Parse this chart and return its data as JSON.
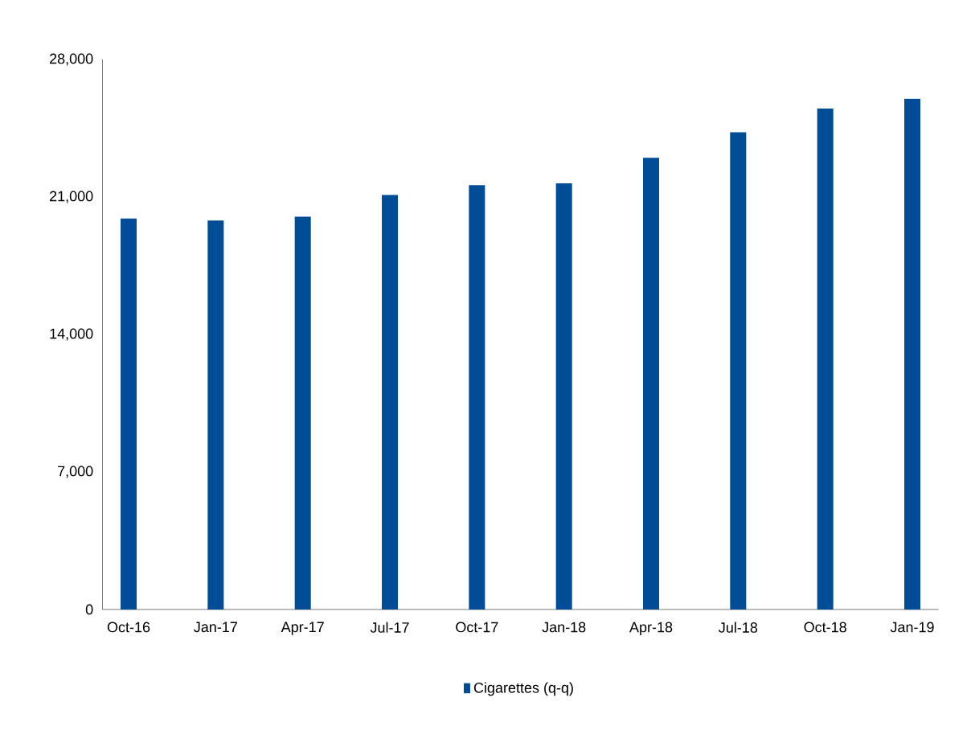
{
  "chart_data": {
    "type": "bar",
    "categories": [
      "Oct-16",
      "Jan-17",
      "Apr-17",
      "Jul-17",
      "Oct-17",
      "Jan-18",
      "Apr-18",
      "Jul-18",
      "Oct-18",
      "Jan-19"
    ],
    "series": [
      {
        "name": "Cigarettes (q-q)",
        "color": "#004c97",
        "values": [
          19900,
          19800,
          20000,
          21100,
          21600,
          21700,
          23000,
          24300,
          25500,
          26000
        ]
      }
    ],
    "ylim": [
      0,
      28000
    ],
    "yticks": [
      {
        "value": 0,
        "label": "0"
      },
      {
        "value": 7000,
        "label": "7,000"
      },
      {
        "value": 14000,
        "label": "14,000"
      },
      {
        "value": 21000,
        "label": "21,000"
      },
      {
        "value": 28000,
        "label": "28,000"
      }
    ],
    "grid": false,
    "legend": "bottom"
  }
}
